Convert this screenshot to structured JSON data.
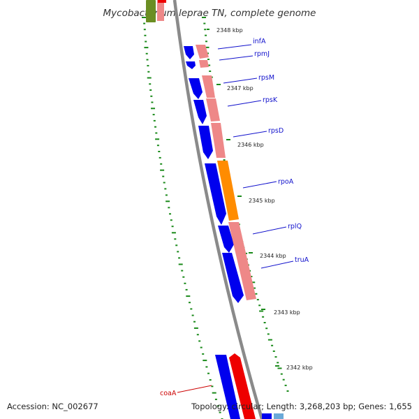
{
  "title": "Mycobacterium leprae TN, complete genome",
  "footer": {
    "accession": "Accession: NC_002677",
    "summary": "Topology: circular; Length: 3,268,203 bp; Genes: 1,655"
  },
  "colors": {
    "forward_cds": "#0000ee",
    "rrna_pink": "#ee8888",
    "orange_gene": "#ff8c00",
    "red_gene": "#ee0000",
    "green_gene": "#6b8e23",
    "backbone": "#8a8a8a",
    "tick_green": "#1a8a1a",
    "label_blue": "#1010cc",
    "label_red": "#cc0000"
  },
  "ticks": [
    {
      "label": "2348 kbp"
    },
    {
      "label": "2347 kbp"
    },
    {
      "label": "2346 kbp"
    },
    {
      "label": "2345 kbp"
    },
    {
      "label": "2344 kbp"
    },
    {
      "label": "2343 kbp"
    },
    {
      "label": "2342 kbp"
    }
  ],
  "genes": [
    {
      "name": "infA",
      "color": "blue"
    },
    {
      "name": "rpmJ",
      "color": "blue"
    },
    {
      "name": "rpsM",
      "color": "blue"
    },
    {
      "name": "rpsK",
      "color": "blue"
    },
    {
      "name": "rpsD",
      "color": "blue"
    },
    {
      "name": "rpoA",
      "color": "blue"
    },
    {
      "name": "rplQ",
      "color": "blue"
    },
    {
      "name": "truA",
      "color": "blue"
    },
    {
      "name": "coaA",
      "color": "red"
    }
  ]
}
